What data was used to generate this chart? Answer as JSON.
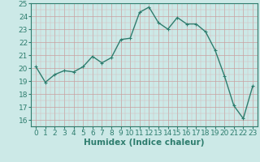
{
  "x": [
    0,
    1,
    2,
    3,
    4,
    5,
    6,
    7,
    8,
    9,
    10,
    11,
    12,
    13,
    14,
    15,
    16,
    17,
    18,
    19,
    20,
    21,
    22,
    23
  ],
  "y": [
    20.1,
    18.9,
    19.5,
    19.8,
    19.7,
    20.1,
    20.9,
    20.4,
    20.8,
    22.2,
    22.3,
    24.3,
    24.7,
    23.5,
    23.0,
    23.9,
    23.4,
    23.4,
    22.8,
    21.4,
    19.4,
    17.1,
    16.1,
    18.6
  ],
  "line_color": "#2e7d6e",
  "marker_size": 3,
  "bg_color": "#cce9e7",
  "grid_color_major": "#c8a0a0",
  "grid_color_minor": "#d0c0c0",
  "xlabel": "Humidex (Indice chaleur)",
  "ylim": [
    16,
    25
  ],
  "xlim": [
    -0.5,
    23.5
  ],
  "yticks": [
    16,
    17,
    18,
    19,
    20,
    21,
    22,
    23,
    24,
    25
  ],
  "xticks": [
    0,
    1,
    2,
    3,
    4,
    5,
    6,
    7,
    8,
    9,
    10,
    11,
    12,
    13,
    14,
    15,
    16,
    17,
    18,
    19,
    20,
    21,
    22,
    23
  ],
  "tick_fontsize": 6.5,
  "xlabel_fontsize": 7.5,
  "line_width": 1.0
}
